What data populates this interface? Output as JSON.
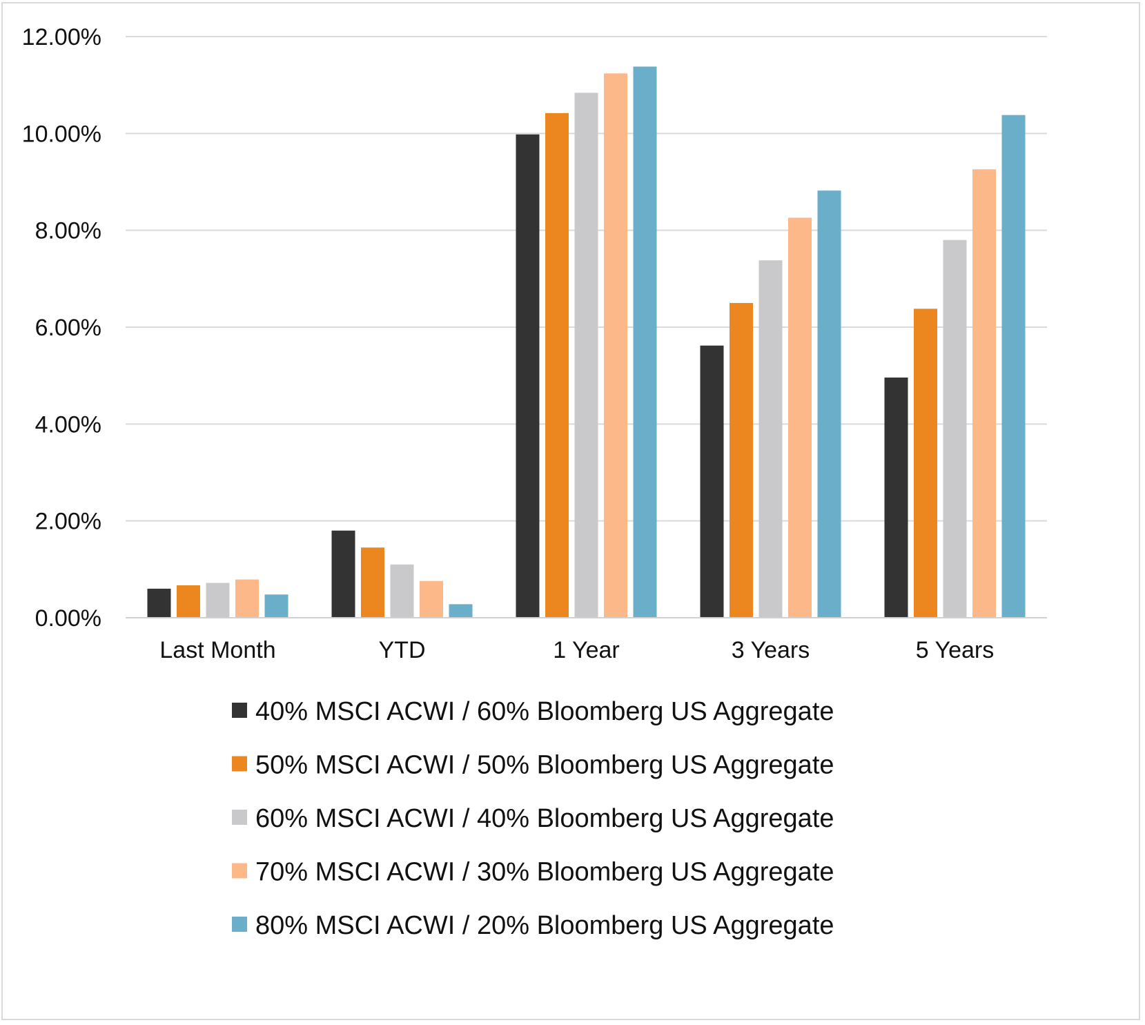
{
  "chart_data": {
    "type": "bar",
    "title": "",
    "xlabel": "",
    "ylabel": "",
    "categories": [
      "Last Month",
      "YTD",
      "1 Year",
      "3 Years",
      "5 Years"
    ],
    "ylim": [
      0,
      12
    ],
    "y_ticks": [
      0,
      2,
      4,
      6,
      8,
      10,
      12
    ],
    "y_tick_labels": [
      "0.00%",
      "2.00%",
      "4.00%",
      "6.00%",
      "8.00%",
      "10.00%",
      "12.00%"
    ],
    "grid": true,
    "legend_position": "bottom",
    "series": [
      {
        "name": "40% MSCI ACWI / 60% Bloomberg US Aggregate",
        "color": "#333333",
        "values": [
          0.6,
          1.8,
          9.98,
          5.62,
          4.96
        ]
      },
      {
        "name": "50% MSCI ACWI / 50% Bloomberg US Aggregate",
        "color": "#ec8720",
        "values": [
          0.67,
          1.45,
          10.42,
          6.5,
          6.38
        ]
      },
      {
        "name": "60% MSCI ACWI / 40% Bloomberg US Aggregate",
        "color": "#c9c9cb",
        "values": [
          0.72,
          1.1,
          10.84,
          7.38,
          7.8
        ]
      },
      {
        "name": "70% MSCI ACWI / 30% Bloomberg US Aggregate",
        "color": "#fdb88a",
        "values": [
          0.79,
          0.76,
          11.24,
          8.26,
          9.26
        ]
      },
      {
        "name": "80% MSCI ACWI / 20% Bloomberg US Aggregate",
        "color": "#6aaec9",
        "values": [
          0.48,
          0.28,
          11.38,
          8.82,
          10.38
        ]
      }
    ]
  }
}
